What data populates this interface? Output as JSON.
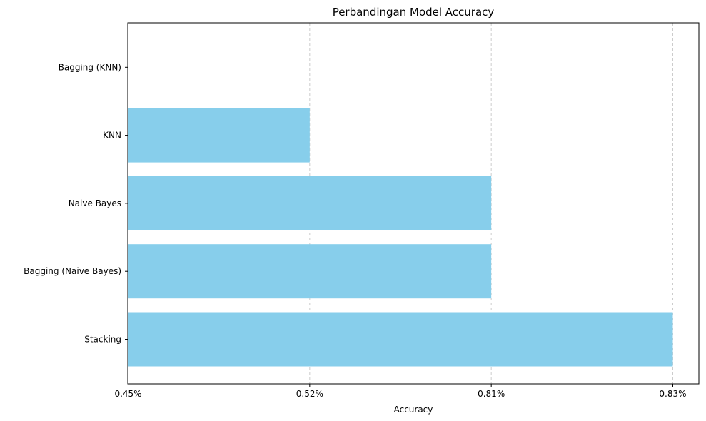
{
  "chart_data": {
    "type": "bar",
    "orientation": "horizontal",
    "title": "Perbandingan Model Accuracy",
    "xlabel": "Accuracy",
    "ylabel": "",
    "categories": [
      "Stacking",
      "Bagging (Naive Bayes)",
      "Naive Bayes",
      "KNN",
      "Bagging (KNN)"
    ],
    "values": [
      "0.83%",
      "0.81%",
      "0.81%",
      "0.52%",
      "0.45%"
    ],
    "x_ticks": [
      "0.45%",
      "0.52%",
      "0.81%",
      "0.83%"
    ],
    "x_axis_scale": "categorical",
    "grid": "x-dashed",
    "colors": {
      "bar": "#87ceeb",
      "grid": "#cccccc",
      "axis": "#000000"
    }
  }
}
